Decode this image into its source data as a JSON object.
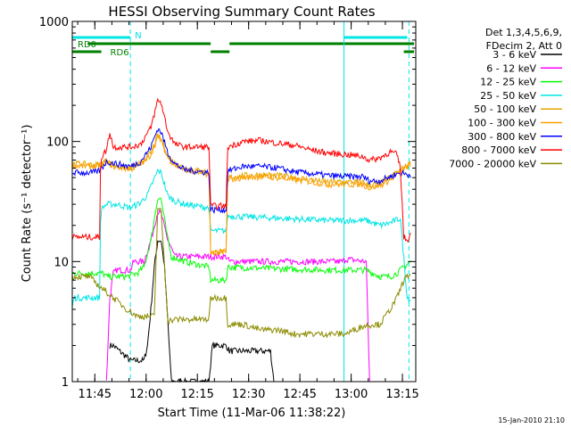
{
  "chart_data": {
    "type": "line",
    "title": "HESSI Observing Summary Count Rates",
    "xlabel": "Start Time (11-Mar-06 11:38:22)",
    "ylabel": "Count Rate (s⁻¹ detector⁻¹)",
    "yscale": "log",
    "ylim": [
      1,
      1000
    ],
    "y_ticks": [
      {
        "value": 1,
        "label": "1"
      },
      {
        "value": 10,
        "label": "10"
      },
      {
        "value": 100,
        "label": "100"
      },
      {
        "value": 1000,
        "label": "1000"
      }
    ],
    "x_unit": "minutes after 11:38:22",
    "xlim": [
      0,
      100.5
    ],
    "x_ticks": [
      {
        "value": 6.6,
        "label": "11:45"
      },
      {
        "value": 21.6,
        "label": "12:00"
      },
      {
        "value": 36.6,
        "label": "12:15"
      },
      {
        "value": 51.6,
        "label": "12:30"
      },
      {
        "value": 66.6,
        "label": "12:45"
      },
      {
        "value": 81.6,
        "label": "13:00"
      },
      {
        "value": 96.6,
        "label": "13:15"
      }
    ],
    "legend": {
      "placement": "right",
      "header": [
        "Det 1,3,4,5,6,9,",
        "FDecim 2, Att 0"
      ]
    },
    "flags": {
      "N": {
        "label": "N",
        "color": "#00e5e5",
        "x": [
          [
            0,
            17
          ],
          [
            79.5,
            98
          ]
        ]
      },
      "RD0": {
        "label": "RD0",
        "color": "#008000",
        "x": [
          [
            4.5,
            40.5
          ],
          [
            46,
            100
          ]
        ]
      },
      "RD6": {
        "label": "RD6",
        "color": "#008000",
        "x": [
          [
            0,
            8.5
          ],
          [
            40.5,
            46
          ],
          [
            97,
            100
          ]
        ]
      },
      "vlines": [
        {
          "x": 17,
          "style": "dashed"
        },
        {
          "x": 79.5,
          "style": "solid"
        },
        {
          "x": 98.5,
          "style": "dashed"
        }
      ]
    },
    "series": [
      {
        "name": "3 - 6 keV",
        "color": "#000000",
        "points": [
          [
            11,
            2
          ],
          [
            12,
            2
          ],
          [
            17,
            1.5
          ],
          [
            21,
            1.5
          ],
          [
            22,
            2
          ],
          [
            23,
            4
          ],
          [
            24,
            9
          ],
          [
            25,
            15
          ],
          [
            26,
            15
          ],
          [
            27,
            9
          ],
          [
            28,
            3
          ],
          [
            29,
            1
          ],
          [
            40,
            1
          ],
          [
            41,
            2
          ],
          [
            45,
            2
          ],
          [
            46,
            1.8
          ],
          [
            58,
            1.8
          ],
          [
            59,
            1
          ]
        ]
      },
      {
        "name": "6 - 12 keV",
        "color": "#ff00ff",
        "points": [
          [
            10,
            1
          ],
          [
            11,
            5
          ],
          [
            12,
            8
          ],
          [
            13,
            8.5
          ],
          [
            17,
            8.5
          ],
          [
            18,
            10
          ],
          [
            21,
            10
          ],
          [
            23,
            15
          ],
          [
            25,
            26
          ],
          [
            26,
            25
          ],
          [
            28,
            15
          ],
          [
            30,
            11
          ],
          [
            35,
            11
          ],
          [
            40,
            11
          ],
          [
            41,
            11
          ],
          [
            45,
            11
          ],
          [
            46,
            10
          ],
          [
            60,
            10
          ],
          [
            70,
            10
          ],
          [
            79,
            10
          ],
          [
            80,
            10.5
          ],
          [
            86,
            10
          ],
          [
            87,
            1
          ]
        ]
      },
      {
        "name": "12 - 25 keV",
        "color": "#00ff00",
        "points": [
          [
            0,
            8
          ],
          [
            8,
            8
          ],
          [
            9,
            8
          ],
          [
            10,
            7.5
          ],
          [
            11,
            7.5
          ],
          [
            13,
            7.5
          ],
          [
            16,
            7.5
          ],
          [
            19,
            8
          ],
          [
            21,
            9
          ],
          [
            23,
            15
          ],
          [
            25,
            34
          ],
          [
            26,
            33
          ],
          [
            28,
            15
          ],
          [
            29,
            11
          ],
          [
            33,
            10
          ],
          [
            40,
            9
          ],
          [
            40.5,
            7
          ],
          [
            45,
            7
          ],
          [
            45.5,
            9
          ],
          [
            60,
            8.7
          ],
          [
            75,
            8.5
          ],
          [
            86,
            8.5
          ],
          [
            88,
            8
          ],
          [
            90,
            7.5
          ],
          [
            93,
            7.5
          ],
          [
            95,
            8
          ],
          [
            97,
            9
          ],
          [
            99,
            10
          ]
        ]
      },
      {
        "name": "25 - 50 keV",
        "color": "#00e5e5",
        "points": [
          [
            0,
            4.2
          ],
          [
            0.5,
            5
          ],
          [
            3,
            5
          ],
          [
            8,
            5
          ],
          [
            8.3,
            27
          ],
          [
            10,
            30
          ],
          [
            13,
            30
          ],
          [
            17,
            28
          ],
          [
            20,
            31
          ],
          [
            22,
            36
          ],
          [
            25,
            57
          ],
          [
            26,
            55
          ],
          [
            28,
            35
          ],
          [
            30,
            32
          ],
          [
            33,
            30
          ],
          [
            40,
            28
          ],
          [
            40.5,
            18
          ],
          [
            45,
            18
          ],
          [
            45.5,
            24
          ],
          [
            60,
            23
          ],
          [
            75,
            22
          ],
          [
            86,
            22
          ],
          [
            88,
            21
          ],
          [
            90,
            20
          ],
          [
            93,
            21
          ],
          [
            96,
            23
          ],
          [
            98,
            5
          ],
          [
            99,
            4.8
          ]
        ]
      },
      {
        "name": "50 - 100 keV",
        "color": "#e5a500",
        "points": [
          [
            0,
            66
          ],
          [
            6,
            64
          ],
          [
            8,
            64
          ],
          [
            10,
            70
          ],
          [
            12,
            63
          ],
          [
            17,
            60
          ],
          [
            20,
            66
          ],
          [
            23,
            80
          ],
          [
            25,
            112
          ],
          [
            26,
            105
          ],
          [
            28,
            75
          ],
          [
            30,
            66
          ],
          [
            33,
            60
          ],
          [
            40,
            55
          ],
          [
            40.5,
            12
          ],
          [
            45,
            12
          ],
          [
            45.5,
            50
          ],
          [
            50,
            52
          ],
          [
            55,
            53
          ],
          [
            60,
            52
          ],
          [
            65,
            50
          ],
          [
            70,
            48
          ],
          [
            75,
            46
          ],
          [
            80,
            46
          ],
          [
            85,
            46
          ],
          [
            87,
            43
          ],
          [
            90,
            45
          ],
          [
            93,
            50
          ],
          [
            96,
            58
          ],
          [
            98,
            63
          ],
          [
            99,
            65
          ]
        ]
      },
      {
        "name": "100 - 300 keV",
        "color": "#ff9f00",
        "points": [
          [
            0,
            63
          ],
          [
            6,
            62
          ],
          [
            8,
            62
          ],
          [
            10,
            68
          ],
          [
            12,
            62
          ],
          [
            17,
            59
          ],
          [
            20,
            64
          ],
          [
            23,
            78
          ],
          [
            25,
            108
          ],
          [
            26,
            102
          ],
          [
            28,
            73
          ],
          [
            30,
            64
          ],
          [
            33,
            58
          ],
          [
            40,
            53
          ],
          [
            40.5,
            12
          ],
          [
            45,
            12
          ],
          [
            45.5,
            48
          ],
          [
            50,
            50
          ],
          [
            55,
            51
          ],
          [
            60,
            50
          ],
          [
            65,
            48
          ],
          [
            70,
            46
          ],
          [
            75,
            44
          ],
          [
            80,
            44
          ],
          [
            85,
            44
          ],
          [
            87,
            41
          ],
          [
            90,
            43
          ],
          [
            93,
            48
          ],
          [
            96,
            56
          ],
          [
            98,
            62
          ],
          [
            99,
            66
          ]
        ]
      },
      {
        "name": "300 - 800 keV",
        "color": "#0000ff",
        "points": [
          [
            0,
            55
          ],
          [
            6,
            55
          ],
          [
            8,
            57
          ],
          [
            10,
            68
          ],
          [
            12,
            66
          ],
          [
            17,
            62
          ],
          [
            20,
            68
          ],
          [
            23,
            90
          ],
          [
            25,
            128
          ],
          [
            26,
            120
          ],
          [
            28,
            80
          ],
          [
            30,
            65
          ],
          [
            33,
            58
          ],
          [
            40,
            55
          ],
          [
            40.5,
            27
          ],
          [
            45,
            27
          ],
          [
            45.5,
            57
          ],
          [
            50,
            62
          ],
          [
            55,
            62
          ],
          [
            60,
            60
          ],
          [
            65,
            56
          ],
          [
            70,
            54
          ],
          [
            75,
            52
          ],
          [
            80,
            51
          ],
          [
            85,
            51
          ],
          [
            87,
            47
          ],
          [
            90,
            47
          ],
          [
            93,
            51
          ],
          [
            96,
            55
          ],
          [
            98,
            53
          ],
          [
            99,
            53
          ]
        ]
      },
      {
        "name": "800 - 7000 keV",
        "color": "#ff0000",
        "points": [
          [
            0,
            16
          ],
          [
            8,
            16
          ],
          [
            8.3,
            72
          ],
          [
            10,
            85
          ],
          [
            11,
            120
          ],
          [
            12,
            90
          ],
          [
            17,
            90
          ],
          [
            20,
            95
          ],
          [
            23,
            130
          ],
          [
            25,
            220
          ],
          [
            26,
            210
          ],
          [
            28,
            120
          ],
          [
            30,
            95
          ],
          [
            33,
            90
          ],
          [
            40,
            90
          ],
          [
            40.5,
            29
          ],
          [
            45,
            29
          ],
          [
            45.5,
            90
          ],
          [
            50,
            100
          ],
          [
            55,
            102
          ],
          [
            60,
            97
          ],
          [
            65,
            93
          ],
          [
            70,
            85
          ],
          [
            75,
            80
          ],
          [
            80,
            78
          ],
          [
            85,
            75
          ],
          [
            87,
            70
          ],
          [
            90,
            73
          ],
          [
            93,
            82
          ],
          [
            95,
            78
          ],
          [
            96,
            60
          ],
          [
            97,
            16
          ],
          [
            98,
            15
          ],
          [
            99,
            17
          ]
        ]
      },
      {
        "name": "7000 - 20000 keV",
        "color": "#8b8b00",
        "points": [
          [
            0,
            7.5
          ],
          [
            5,
            7.5
          ],
          [
            8,
            6.2
          ],
          [
            12,
            5
          ],
          [
            16,
            4
          ],
          [
            19,
            3.5
          ],
          [
            22,
            3.5
          ],
          [
            24,
            3.5
          ],
          [
            25,
            28
          ],
          [
            26,
            26
          ],
          [
            28,
            3.2
          ],
          [
            30,
            3.3
          ],
          [
            33,
            3.3
          ],
          [
            35,
            3.3
          ],
          [
            40,
            3.3
          ],
          [
            40.5,
            5
          ],
          [
            45,
            5
          ],
          [
            45.5,
            3
          ],
          [
            50,
            3
          ],
          [
            55,
            2.7
          ],
          [
            60,
            2.7
          ],
          [
            65,
            2.5
          ],
          [
            70,
            2.5
          ],
          [
            75,
            2.5
          ],
          [
            80,
            2.5
          ],
          [
            85,
            2.9
          ],
          [
            88,
            3
          ],
          [
            90,
            3
          ],
          [
            93,
            4
          ],
          [
            95,
            5
          ],
          [
            97,
            7
          ],
          [
            99,
            8
          ]
        ]
      }
    ]
  },
  "footer": {
    "timestamp": "15-Jan-2010 21:10"
  }
}
